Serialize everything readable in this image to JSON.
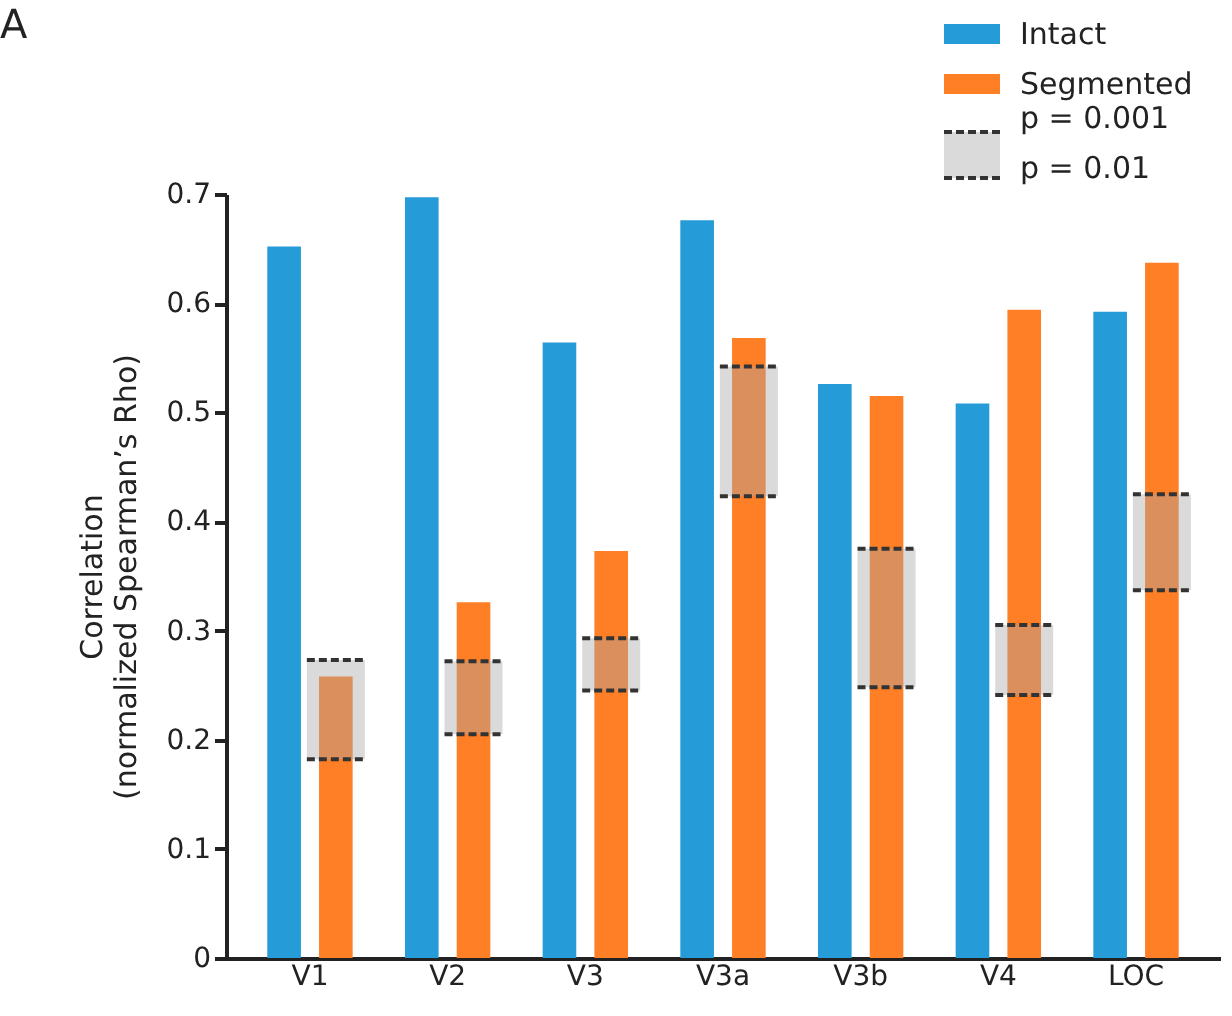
{
  "chart_data": {
    "type": "bar",
    "title": "A",
    "ylabel": "Correlation\n(normalized Spearman’s Rho)",
    "categories": [
      "V1",
      "V2",
      "V3",
      "V3a",
      "V3b",
      "V4",
      "LOC"
    ],
    "series": [
      {
        "name": "Intact",
        "color": "#259bd7",
        "values": [
          0.652,
          0.697,
          0.564,
          0.676,
          0.526,
          0.508,
          0.592
        ]
      },
      {
        "name": "Segmented",
        "color": "#ff7f27",
        "values": [
          0.258,
          0.326,
          0.373,
          0.568,
          0.515,
          0.594,
          0.637
        ]
      },
      {
        "name": "p = 0.001\np = 0.01",
        "type": "bar",
        "color": "#a8a8a8",
        "line_style": "dashed",
        "base": [
          0.182,
          0.205,
          0.245,
          0.423,
          0.248,
          0.241,
          0.337
        ],
        "values": [
          0.091,
          0.067,
          0.048,
          0.119,
          0.127,
          0.064,
          0.088
        ]
      }
    ],
    "ylim": [
      0,
      0.7
    ],
    "yticks": [
      0,
      0.1,
      0.2,
      0.3,
      0.4,
      0.5,
      0.6,
      0.7
    ],
    "grid": false,
    "legend": "top right"
  }
}
